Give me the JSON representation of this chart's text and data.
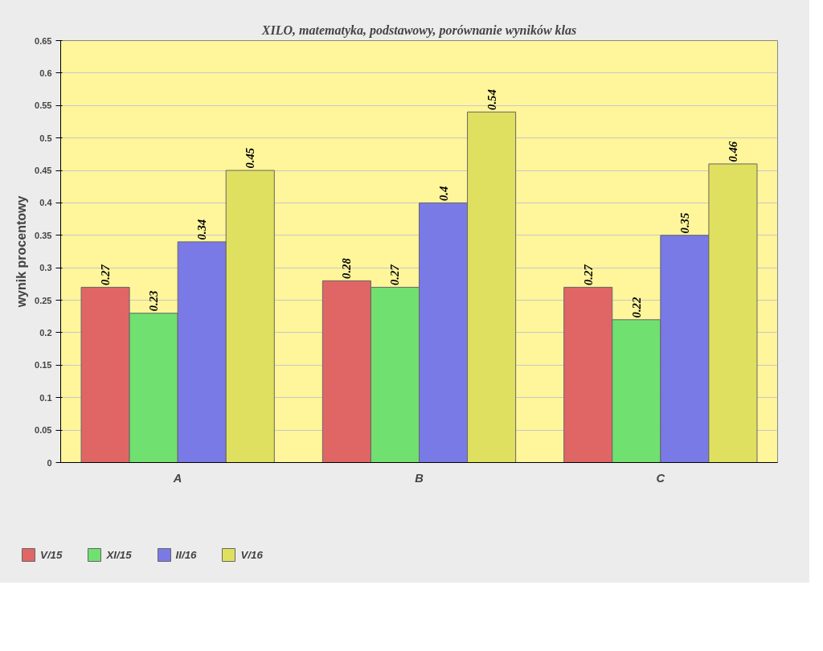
{
  "chart_data": {
    "type": "bar",
    "title": "XILO, matematyka, podstawowy, porównanie wyników klas",
    "ylabel": "wynik procentowy",
    "categories": [
      "A",
      "B",
      "C"
    ],
    "series": [
      {
        "name": "V/15",
        "color": "#e06666",
        "values": [
          0.27,
          0.28,
          0.27
        ]
      },
      {
        "name": "XI/15",
        "color": "#70e070",
        "values": [
          0.23,
          0.27,
          0.22
        ]
      },
      {
        "name": "II/16",
        "color": "#7a7ae6",
        "values": [
          0.34,
          0.4,
          0.35
        ]
      },
      {
        "name": "V/16",
        "color": "#e0e060",
        "values": [
          0.45,
          0.54,
          0.46
        ]
      }
    ],
    "ylim": [
      0,
      0.65
    ],
    "yticks": [
      0,
      0.05,
      0.1,
      0.15,
      0.2,
      0.25,
      0.3,
      0.35,
      0.4,
      0.45,
      0.5,
      0.55,
      0.6,
      0.65
    ],
    "grid": "y",
    "legend": "bottom left",
    "data_labels": true
  }
}
